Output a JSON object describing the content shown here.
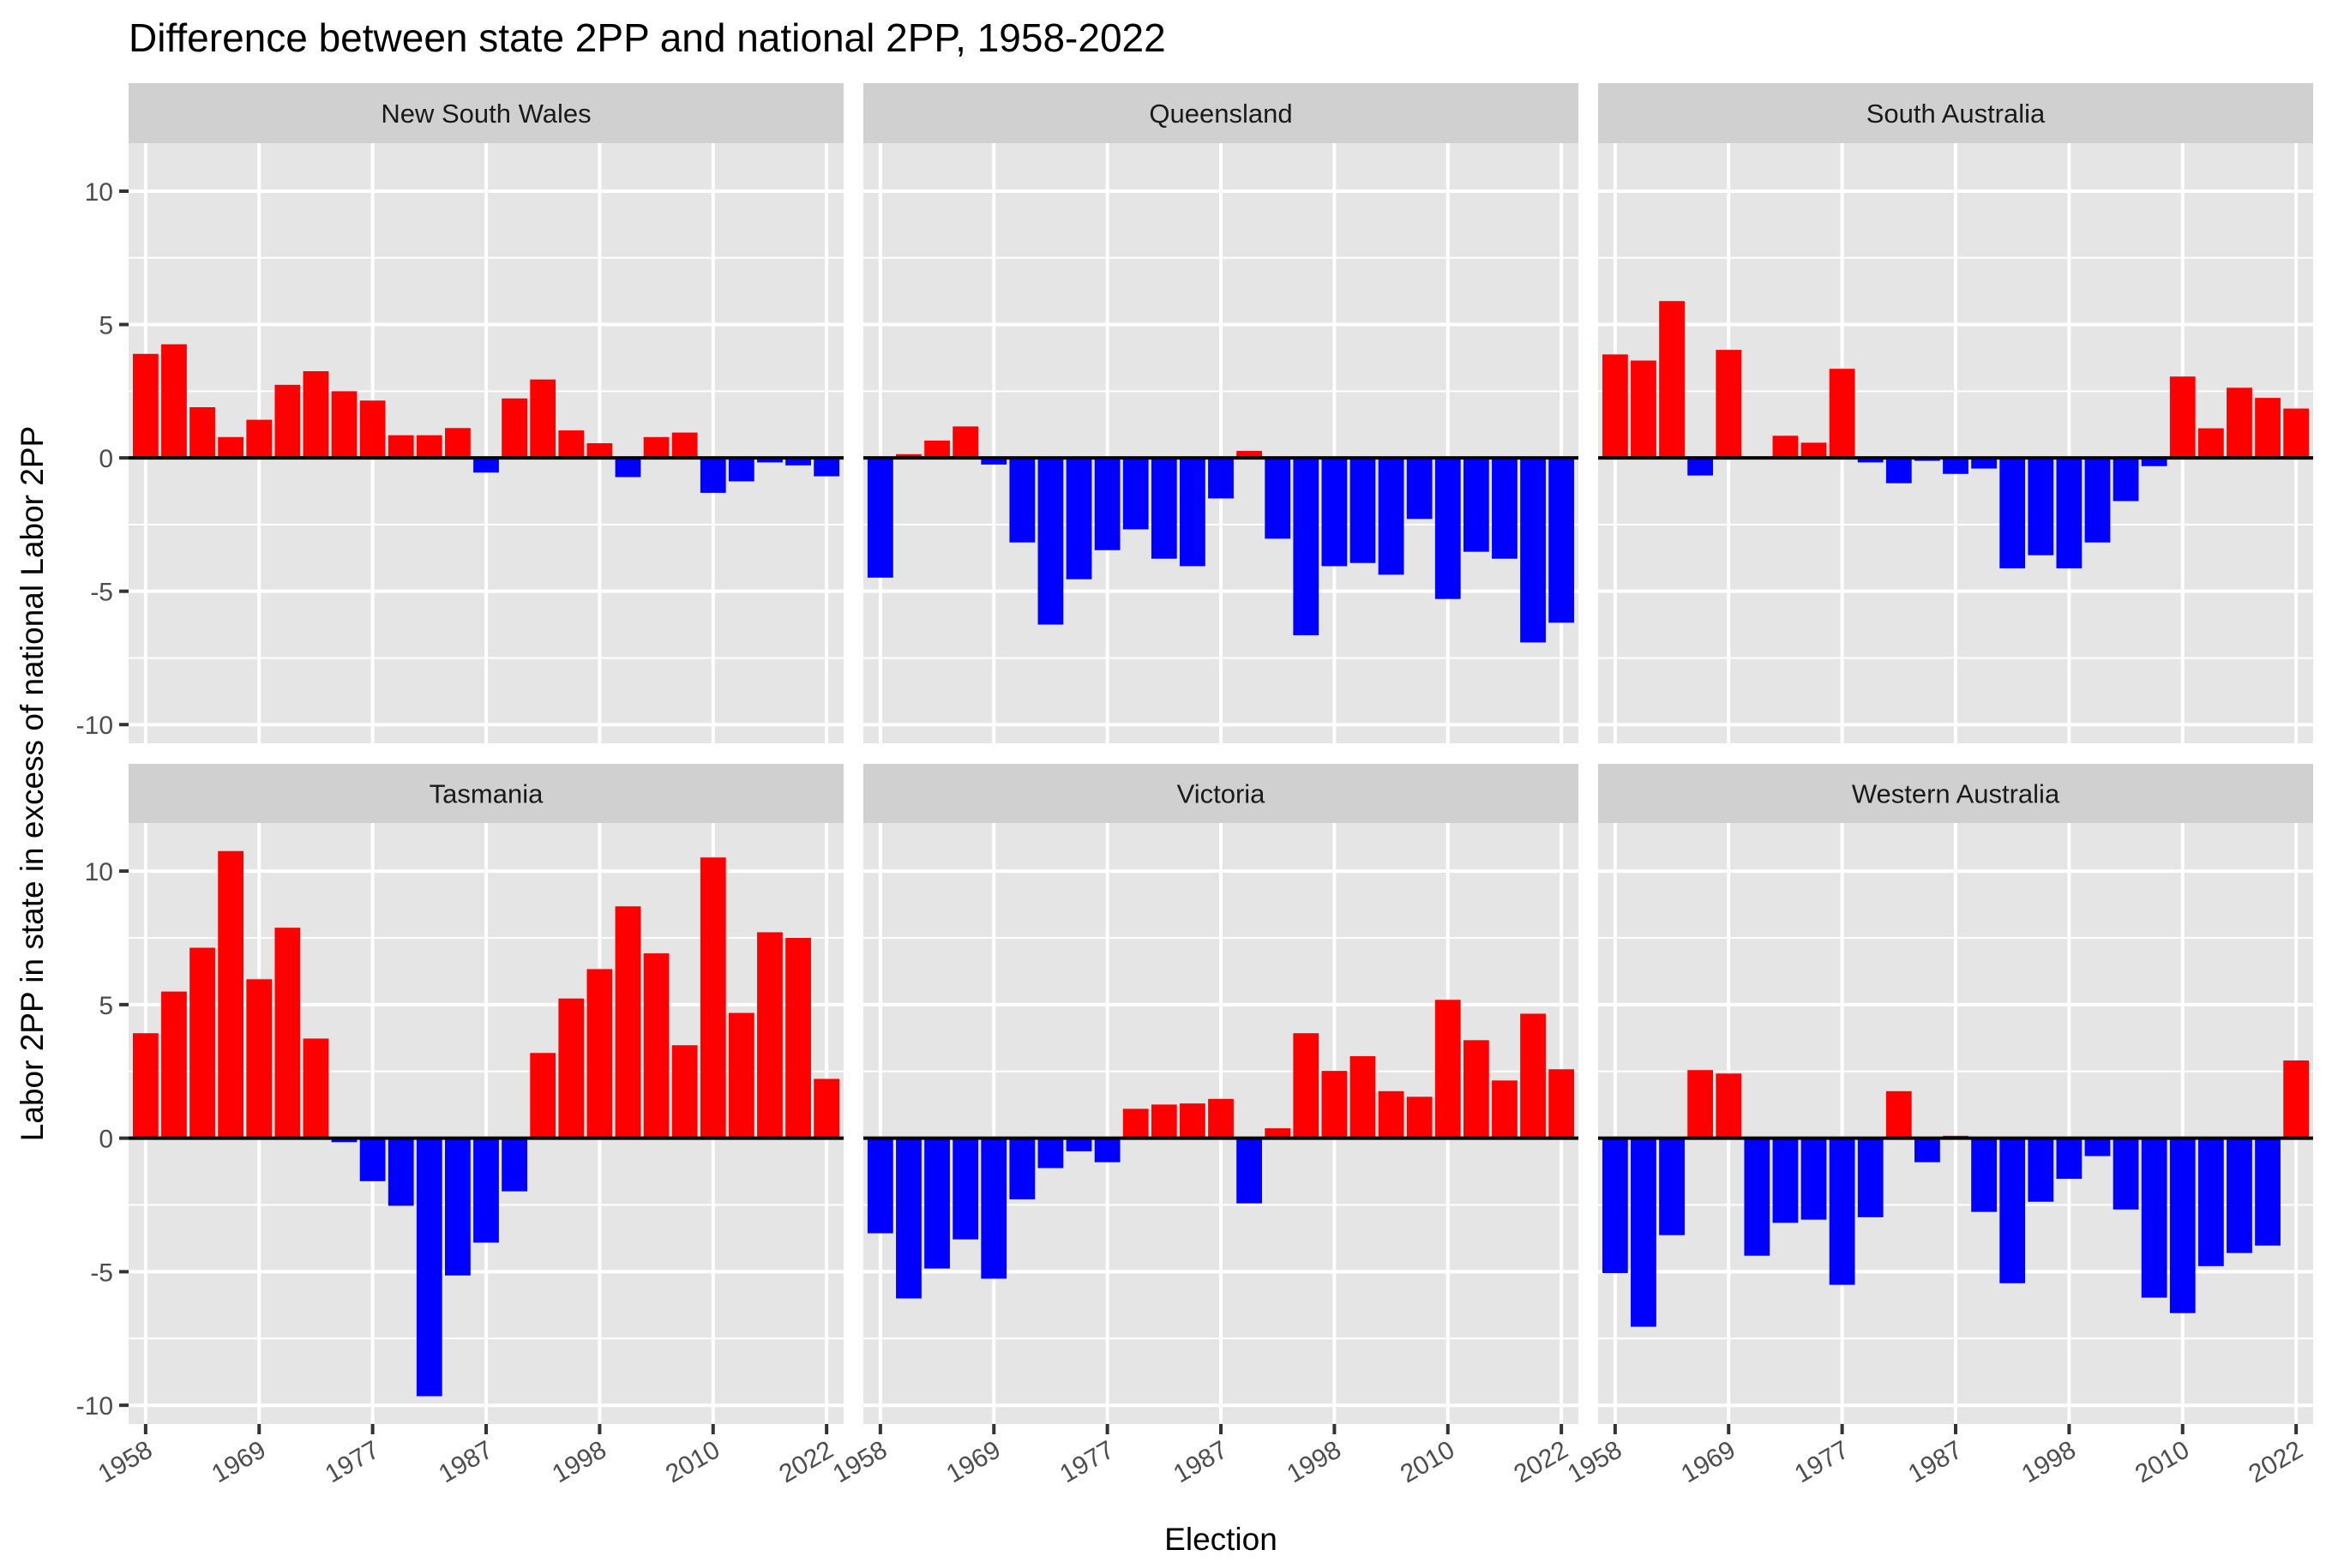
{
  "chart_data": {
    "type": "bar",
    "title": "Difference between state 2PP and national 2PP, 1958-2022",
    "xlabel": "Election",
    "ylabel": "Labor 2PP in state in excess of national Labor 2PP",
    "categories": [
      "1958",
      "1961",
      "1963",
      "1966",
      "1969",
      "1972",
      "1974",
      "1975",
      "1977",
      "1980",
      "1983",
      "1984",
      "1987",
      "1990",
      "1993",
      "1996",
      "1998",
      "2001",
      "2004",
      "2007",
      "2010",
      "2013",
      "2016",
      "2019",
      "2022"
    ],
    "x_tick_labels": [
      "1958",
      "1969",
      "1977",
      "1987",
      "1998",
      "2010",
      "2022"
    ],
    "y_ticks": [
      10,
      5,
      0,
      -5,
      -10
    ],
    "y_tick_labels": [
      "10",
      "5",
      "0",
      "-5",
      "-10"
    ],
    "ylim": [
      -10.7,
      11.8
    ],
    "grid": true,
    "facet_layout": "3 columns x 2 rows, shared axes",
    "colors": {
      "positive": "#ff0000",
      "negative": "#0000ff",
      "panel_bg": "#e5e5e5",
      "strip_bg": "#d0d0d0",
      "grid": "#ffffff",
      "zero_line": "#000000",
      "axis_text": "#4d4d4d"
    },
    "series": [
      {
        "name": "New South Wales",
        "values": [
          3.9,
          4.26,
          1.9,
          0.78,
          1.43,
          2.74,
          3.25,
          2.5,
          2.15,
          0.85,
          0.85,
          1.12,
          -0.55,
          2.23,
          2.94,
          1.03,
          0.55,
          -0.72,
          0.78,
          0.95,
          -1.31,
          -0.88,
          -0.17,
          -0.28,
          -0.69
        ]
      },
      {
        "name": "Queensland",
        "values": [
          -4.49,
          0.14,
          0.65,
          1.18,
          -0.25,
          -3.17,
          -6.25,
          -4.55,
          -3.46,
          -2.68,
          -3.78,
          -4.06,
          -1.52,
          0.26,
          -3.03,
          -6.65,
          -4.06,
          -3.94,
          -4.38,
          -2.29,
          -5.29,
          -3.52,
          -3.78,
          -6.92,
          -6.18
        ]
      },
      {
        "name": "South Australia",
        "values": [
          3.88,
          3.65,
          5.88,
          -0.66,
          4.05,
          0.0,
          0.83,
          0.57,
          3.34,
          -0.17,
          -0.95,
          -0.11,
          -0.6,
          -0.4,
          -4.14,
          -3.65,
          -4.14,
          -3.17,
          -1.62,
          -0.31,
          3.05,
          1.11,
          2.63,
          2.25,
          1.85
        ]
      },
      {
        "name": "Tasmania",
        "values": [
          3.93,
          5.49,
          7.13,
          10.75,
          5.95,
          7.88,
          3.73,
          -0.15,
          -1.61,
          -2.53,
          -9.66,
          -5.14,
          -3.91,
          -1.99,
          3.19,
          5.23,
          6.33,
          8.68,
          6.92,
          3.48,
          10.51,
          4.69,
          7.71,
          7.5,
          2.22
        ]
      },
      {
        "name": "Victoria",
        "values": [
          -3.56,
          -6.0,
          -4.88,
          -3.79,
          -5.26,
          -2.29,
          -1.12,
          -0.49,
          -0.9,
          1.1,
          1.26,
          1.3,
          1.47,
          -2.44,
          0.37,
          3.93,
          2.52,
          3.07,
          1.76,
          1.55,
          5.18,
          3.67,
          2.16,
          4.66,
          2.58
        ]
      },
      {
        "name": "Western Australia",
        "values": [
          -5.05,
          -7.06,
          -3.63,
          2.55,
          2.42,
          -4.4,
          -3.17,
          -3.05,
          -5.49,
          -2.96,
          1.76,
          -0.9,
          0.09,
          -2.76,
          -5.43,
          -2.38,
          -1.52,
          -0.67,
          -2.67,
          -5.97,
          -6.55,
          -4.79,
          -4.3,
          -4.02,
          2.91
        ]
      }
    ]
  }
}
